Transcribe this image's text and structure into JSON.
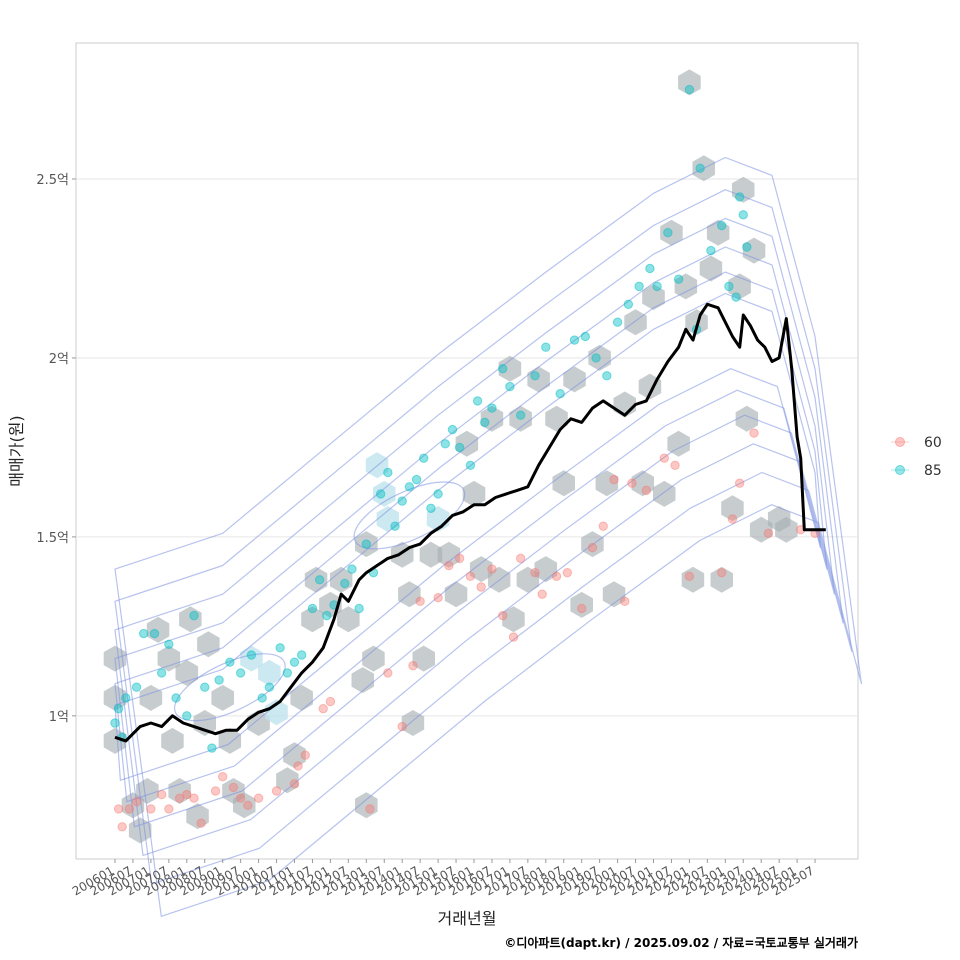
{
  "chart_data": {
    "type": "scatter",
    "xlabel": "거래년월",
    "ylabel": "매매가(원)",
    "caption": "©디아파트(dapt.kr) / 2025.09.02 / 자료=국토교통부 실거래가",
    "y_ticks": [
      {
        "value": 1.0,
        "label": "1억"
      },
      {
        "value": 1.5,
        "label": "1.5억"
      },
      {
        "value": 2.0,
        "label": "2억"
      },
      {
        "value": 2.5,
        "label": "2.5억"
      }
    ],
    "ylim": [
      0.6,
      2.88
    ],
    "x_start": "2006-01",
    "x_end": "2025-09",
    "x_tick_labels": [
      "200601",
      "200607",
      "200701",
      "200707",
      "200801",
      "200807",
      "200901",
      "200907",
      "201001",
      "201007",
      "201101",
      "201107",
      "201201",
      "201207",
      "201301",
      "201307",
      "201401",
      "201407",
      "201501",
      "201507",
      "201601",
      "201607",
      "201701",
      "201707",
      "201801",
      "201807",
      "201901",
      "201907",
      "202001",
      "202007",
      "202101",
      "202107",
      "202201",
      "202207",
      "202301",
      "202307",
      "202401",
      "202407",
      "202501",
      "202507"
    ],
    "legend": [
      {
        "name": "60",
        "color": "#F8766D"
      },
      {
        "name": "85",
        "color": "#00BFC4"
      }
    ],
    "colors": {
      "hex_fill": "#A9B0B5",
      "hex_light": "#BFE3EE",
      "contour": "#7B92E0",
      "trend_line": "#000000",
      "grid": "#E6E6E6",
      "panel_border": "#CCCCCC"
    },
    "trend_line": [
      [
        2006.0,
        0.94
      ],
      [
        2006.3,
        0.93
      ],
      [
        2006.7,
        0.97
      ],
      [
        2007.0,
        0.98
      ],
      [
        2007.3,
        0.97
      ],
      [
        2007.6,
        1.0
      ],
      [
        2007.9,
        0.98
      ],
      [
        2008.2,
        0.97
      ],
      [
        2008.5,
        0.96
      ],
      [
        2008.8,
        0.95
      ],
      [
        2009.1,
        0.96
      ],
      [
        2009.4,
        0.96
      ],
      [
        2009.7,
        0.99
      ],
      [
        2010.0,
        1.01
      ],
      [
        2010.3,
        1.02
      ],
      [
        2010.6,
        1.04
      ],
      [
        2010.9,
        1.08
      ],
      [
        2011.2,
        1.12
      ],
      [
        2011.5,
        1.15
      ],
      [
        2011.8,
        1.19
      ],
      [
        2012.1,
        1.27
      ],
      [
        2012.3,
        1.34
      ],
      [
        2012.5,
        1.32
      ],
      [
        2012.8,
        1.38
      ],
      [
        2013.0,
        1.4
      ],
      [
        2013.3,
        1.42
      ],
      [
        2013.6,
        1.44
      ],
      [
        2013.9,
        1.45
      ],
      [
        2014.2,
        1.47
      ],
      [
        2014.5,
        1.48
      ],
      [
        2014.8,
        1.51
      ],
      [
        2015.1,
        1.53
      ],
      [
        2015.4,
        1.56
      ],
      [
        2015.7,
        1.57
      ],
      [
        2016.0,
        1.59
      ],
      [
        2016.3,
        1.59
      ],
      [
        2016.6,
        1.61
      ],
      [
        2016.9,
        1.62
      ],
      [
        2017.2,
        1.63
      ],
      [
        2017.5,
        1.64
      ],
      [
        2017.8,
        1.7
      ],
      [
        2018.1,
        1.75
      ],
      [
        2018.4,
        1.8
      ],
      [
        2018.7,
        1.83
      ],
      [
        2019.0,
        1.82
      ],
      [
        2019.3,
        1.86
      ],
      [
        2019.6,
        1.88
      ],
      [
        2019.9,
        1.86
      ],
      [
        2020.2,
        1.84
      ],
      [
        2020.5,
        1.87
      ],
      [
        2020.8,
        1.88
      ],
      [
        2021.1,
        1.94
      ],
      [
        2021.4,
        1.99
      ],
      [
        2021.7,
        2.03
      ],
      [
        2021.9,
        2.08
      ],
      [
        2022.1,
        2.05
      ],
      [
        2022.3,
        2.12
      ],
      [
        2022.5,
        2.15
      ],
      [
        2022.8,
        2.14
      ],
      [
        2023.0,
        2.1
      ],
      [
        2023.2,
        2.06
      ],
      [
        2023.4,
        2.03
      ],
      [
        2023.5,
        2.12
      ],
      [
        2023.7,
        2.09
      ],
      [
        2023.9,
        2.05
      ],
      [
        2024.1,
        2.03
      ],
      [
        2024.3,
        1.99
      ],
      [
        2024.5,
        2.0
      ],
      [
        2024.7,
        2.11
      ],
      [
        2024.85,
        1.97
      ],
      [
        2025.0,
        1.78
      ],
      [
        2025.1,
        1.72
      ],
      [
        2025.2,
        1.52
      ],
      [
        2025.5,
        1.52
      ],
      [
        2025.8,
        1.52
      ]
    ],
    "hexbins": [
      [
        2006.0,
        1.16
      ],
      [
        2006.0,
        1.05
      ],
      [
        2006.0,
        0.93
      ],
      [
        2006.5,
        0.75
      ],
      [
        2006.7,
        0.68
      ],
      [
        2006.9,
        0.79
      ],
      [
        2007.0,
        1.05
      ],
      [
        2007.2,
        1.24
      ],
      [
        2007.5,
        1.16
      ],
      [
        2007.6,
        0.93
      ],
      [
        2007.8,
        0.79
      ],
      [
        2008.0,
        1.12
      ],
      [
        2008.1,
        1.27
      ],
      [
        2008.3,
        0.72
      ],
      [
        2008.5,
        0.98
      ],
      [
        2008.6,
        1.2
      ],
      [
        2009.0,
        1.05
      ],
      [
        2009.2,
        0.93
      ],
      [
        2009.3,
        0.79
      ],
      [
        2009.6,
        0.75
      ],
      [
        2009.8,
        1.16
      ],
      [
        2010.0,
        0.98
      ],
      [
        2010.3,
        1.12
      ],
      [
        2010.5,
        1.01
      ],
      [
        2010.8,
        0.82
      ],
      [
        2011.0,
        0.89
      ],
      [
        2011.2,
        1.05
      ],
      [
        2011.5,
        1.27
      ],
      [
        2011.6,
        1.38
      ],
      [
        2012.0,
        1.31
      ],
      [
        2012.3,
        1.38
      ],
      [
        2012.5,
        1.27
      ],
      [
        2012.9,
        1.1
      ],
      [
        2013.0,
        1.48
      ],
      [
        2013.2,
        1.16
      ],
      [
        2013.0,
        0.75
      ],
      [
        2013.3,
        1.7
      ],
      [
        2013.5,
        1.62
      ],
      [
        2013.6,
        1.55
      ],
      [
        2014.0,
        1.45
      ],
      [
        2014.2,
        1.34
      ],
      [
        2014.3,
        0.98
      ],
      [
        2014.6,
        1.16
      ],
      [
        2014.8,
        1.45
      ],
      [
        2015.0,
        1.55
      ],
      [
        2015.3,
        1.45
      ],
      [
        2015.5,
        1.34
      ],
      [
        2015.8,
        1.76
      ],
      [
        2016.0,
        1.62
      ],
      [
        2016.2,
        1.41
      ],
      [
        2016.5,
        1.83
      ],
      [
        2016.7,
        1.38
      ],
      [
        2017.0,
        1.97
      ],
      [
        2017.1,
        1.27
      ],
      [
        2017.3,
        1.83
      ],
      [
        2017.5,
        1.38
      ],
      [
        2017.8,
        1.94
      ],
      [
        2018.0,
        1.41
      ],
      [
        2018.3,
        1.83
      ],
      [
        2018.5,
        1.65
      ],
      [
        2018.8,
        1.94
      ],
      [
        2019.0,
        1.31
      ],
      [
        2019.3,
        1.48
      ],
      [
        2019.5,
        2.0
      ],
      [
        2019.7,
        1.65
      ],
      [
        2019.9,
        1.34
      ],
      [
        2020.2,
        1.87
      ],
      [
        2020.5,
        2.1
      ],
      [
        2020.7,
        1.65
      ],
      [
        2020.9,
        1.92
      ],
      [
        2021.0,
        2.17
      ],
      [
        2021.3,
        1.62
      ],
      [
        2021.5,
        2.35
      ],
      [
        2021.7,
        1.76
      ],
      [
        2021.9,
        2.2
      ],
      [
        2022.0,
        2.77
      ],
      [
        2022.1,
        1.38
      ],
      [
        2022.2,
        2.1
      ],
      [
        2022.4,
        2.53
      ],
      [
        2022.6,
        2.25
      ],
      [
        2022.8,
        2.35
      ],
      [
        2022.9,
        1.38
      ],
      [
        2023.2,
        1.58
      ],
      [
        2023.4,
        2.2
      ],
      [
        2023.5,
        2.47
      ],
      [
        2023.6,
        1.83
      ],
      [
        2023.8,
        2.3
      ],
      [
        2024.0,
        1.52
      ],
      [
        2024.5,
        1.55
      ],
      [
        2024.7,
        1.52
      ]
    ],
    "points_60": [
      [
        2006.1,
        0.74
      ],
      [
        2006.2,
        0.69
      ],
      [
        2006.4,
        0.74
      ],
      [
        2006.6,
        0.76
      ],
      [
        2007.0,
        0.74
      ],
      [
        2007.3,
        0.78
      ],
      [
        2007.5,
        0.74
      ],
      [
        2007.8,
        0.77
      ],
      [
        2008.0,
        0.78
      ],
      [
        2008.2,
        0.77
      ],
      [
        2008.4,
        0.7
      ],
      [
        2008.8,
        0.79
      ],
      [
        2009.0,
        0.83
      ],
      [
        2009.3,
        0.8
      ],
      [
        2009.5,
        0.77
      ],
      [
        2009.7,
        0.75
      ],
      [
        2010.0,
        0.77
      ],
      [
        2010.5,
        0.79
      ],
      [
        2011.0,
        0.81
      ],
      [
        2011.1,
        0.86
      ],
      [
        2011.3,
        0.89
      ],
      [
        2011.8,
        1.02
      ],
      [
        2012.0,
        1.04
      ],
      [
        2013.1,
        0.74
      ],
      [
        2013.6,
        1.12
      ],
      [
        2014.0,
        0.97
      ],
      [
        2014.3,
        1.14
      ],
      [
        2014.5,
        1.32
      ],
      [
        2015.0,
        1.33
      ],
      [
        2015.3,
        1.42
      ],
      [
        2015.6,
        1.44
      ],
      [
        2015.9,
        1.39
      ],
      [
        2016.2,
        1.36
      ],
      [
        2016.5,
        1.41
      ],
      [
        2016.8,
        1.28
      ],
      [
        2017.1,
        1.22
      ],
      [
        2017.3,
        1.44
      ],
      [
        2017.7,
        1.4
      ],
      [
        2017.9,
        1.34
      ],
      [
        2018.3,
        1.39
      ],
      [
        2018.6,
        1.4
      ],
      [
        2019.0,
        1.3
      ],
      [
        2019.3,
        1.47
      ],
      [
        2019.6,
        1.53
      ],
      [
        2019.9,
        1.66
      ],
      [
        2020.2,
        1.32
      ],
      [
        2020.4,
        1.65
      ],
      [
        2020.8,
        1.63
      ],
      [
        2021.3,
        1.72
      ],
      [
        2021.6,
        1.7
      ],
      [
        2022.0,
        1.39
      ],
      [
        2022.9,
        1.4
      ],
      [
        2023.2,
        1.55
      ],
      [
        2023.4,
        1.65
      ],
      [
        2023.8,
        1.79
      ],
      [
        2024.2,
        1.51
      ],
      [
        2025.1,
        1.52
      ],
      [
        2025.5,
        1.51
      ]
    ],
    "points_85": [
      [
        2006.0,
        0.98
      ],
      [
        2006.1,
        1.02
      ],
      [
        2006.2,
        0.94
      ],
      [
        2006.3,
        1.05
      ],
      [
        2006.6,
        1.08
      ],
      [
        2006.8,
        1.23
      ],
      [
        2007.1,
        1.23
      ],
      [
        2007.3,
        1.12
      ],
      [
        2007.5,
        1.2
      ],
      [
        2007.7,
        1.05
      ],
      [
        2008.0,
        1.0
      ],
      [
        2008.2,
        1.28
      ],
      [
        2008.5,
        1.08
      ],
      [
        2008.7,
        0.91
      ],
      [
        2008.9,
        1.1
      ],
      [
        2009.2,
        1.15
      ],
      [
        2009.5,
        1.12
      ],
      [
        2009.8,
        1.17
      ],
      [
        2010.1,
        1.05
      ],
      [
        2010.3,
        1.08
      ],
      [
        2010.6,
        1.19
      ],
      [
        2010.8,
        1.12
      ],
      [
        2011.0,
        1.15
      ],
      [
        2011.2,
        1.17
      ],
      [
        2011.5,
        1.3
      ],
      [
        2011.7,
        1.38
      ],
      [
        2011.9,
        1.28
      ],
      [
        2012.1,
        1.31
      ],
      [
        2012.4,
        1.37
      ],
      [
        2012.6,
        1.41
      ],
      [
        2012.8,
        1.3
      ],
      [
        2013.0,
        1.48
      ],
      [
        2013.2,
        1.4
      ],
      [
        2013.4,
        1.62
      ],
      [
        2013.6,
        1.68
      ],
      [
        2013.8,
        1.53
      ],
      [
        2014.0,
        1.6
      ],
      [
        2014.2,
        1.64
      ],
      [
        2014.4,
        1.66
      ],
      [
        2014.6,
        1.72
      ],
      [
        2014.8,
        1.58
      ],
      [
        2015.0,
        1.62
      ],
      [
        2015.2,
        1.76
      ],
      [
        2015.4,
        1.8
      ],
      [
        2015.6,
        1.75
      ],
      [
        2015.9,
        1.7
      ],
      [
        2016.1,
        1.88
      ],
      [
        2016.3,
        1.82
      ],
      [
        2016.5,
        1.86
      ],
      [
        2016.8,
        1.97
      ],
      [
        2017.0,
        1.92
      ],
      [
        2017.3,
        1.84
      ],
      [
        2017.7,
        1.95
      ],
      [
        2018.0,
        2.03
      ],
      [
        2018.4,
        1.9
      ],
      [
        2018.8,
        2.05
      ],
      [
        2019.1,
        2.06
      ],
      [
        2019.4,
        2.0
      ],
      [
        2019.7,
        1.95
      ],
      [
        2020.0,
        2.1
      ],
      [
        2020.3,
        2.15
      ],
      [
        2020.6,
        2.2
      ],
      [
        2020.9,
        2.25
      ],
      [
        2021.1,
        2.2
      ],
      [
        2021.4,
        2.35
      ],
      [
        2021.7,
        2.22
      ],
      [
        2022.0,
        2.75
      ],
      [
        2022.2,
        2.08
      ],
      [
        2022.3,
        2.53
      ],
      [
        2022.6,
        2.3
      ],
      [
        2022.9,
        2.37
      ],
      [
        2023.1,
        2.2
      ],
      [
        2023.4,
        2.45
      ],
      [
        2023.6,
        2.31
      ],
      [
        2023.3,
        2.17
      ],
      [
        2023.5,
        2.4
      ]
    ]
  }
}
